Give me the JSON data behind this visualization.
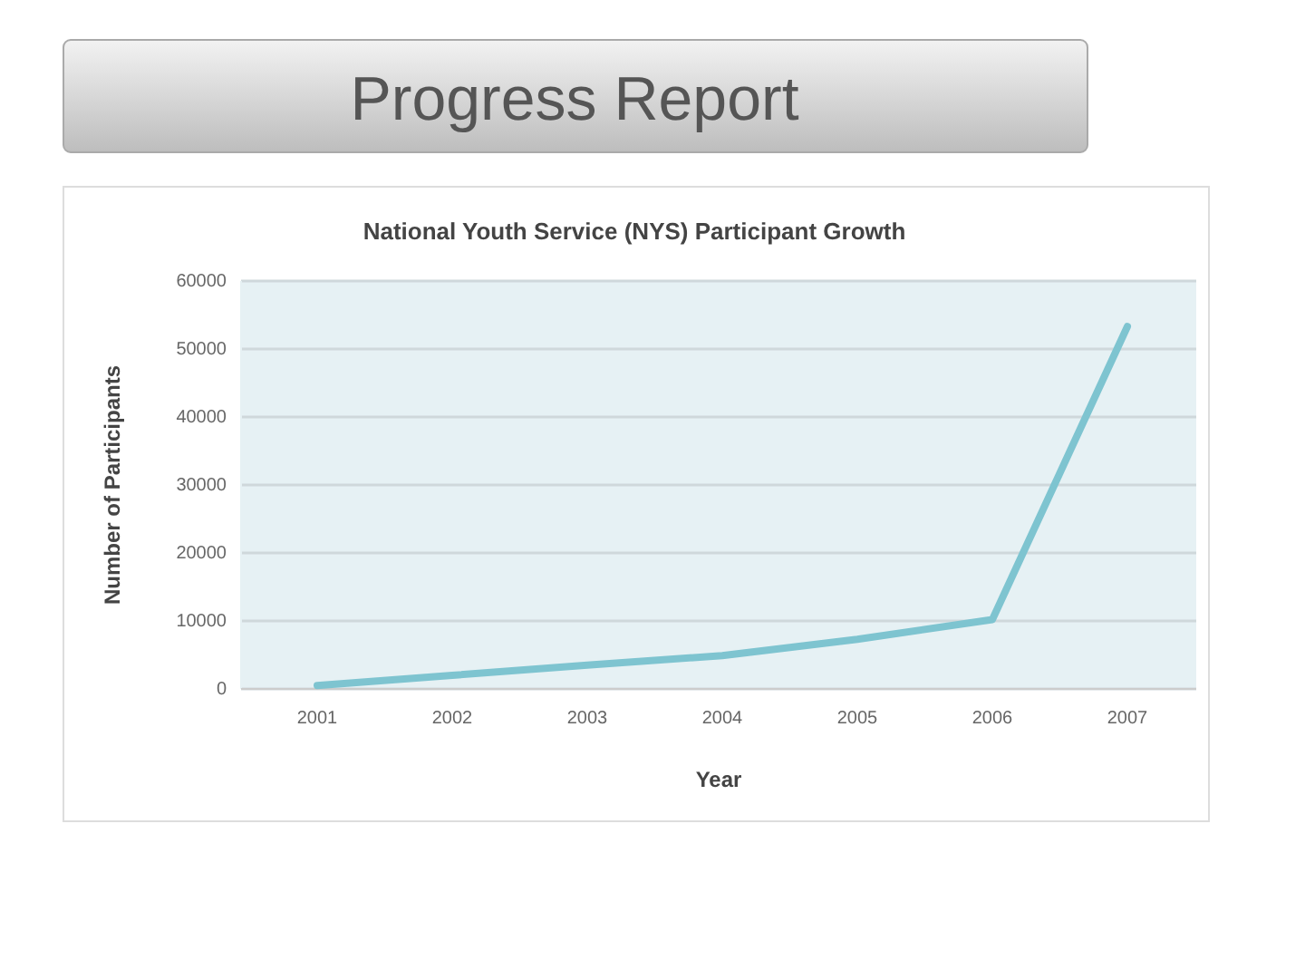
{
  "chart_data": {
    "type": "line",
    "title": "Progress Report",
    "subtitle": "National Youth Service (NYS) Participant Growth",
    "xlabel": "Year",
    "ylabel": "Number of Participants",
    "categories": [
      "2001",
      "2002",
      "2003",
      "2004",
      "2005",
      "2006",
      "2007"
    ],
    "series": [
      {
        "color": "#7ec4d0",
        "values": [
          500,
          2000,
          3500,
          4900,
          7300,
          10200,
          53300
        ]
      }
    ],
    "ylim": [
      0,
      60000
    ],
    "yticks": [
      0,
      10000,
      20000,
      30000,
      40000,
      50000,
      60000
    ],
    "grid": "y",
    "marker": "none",
    "line_style": "solid"
  }
}
